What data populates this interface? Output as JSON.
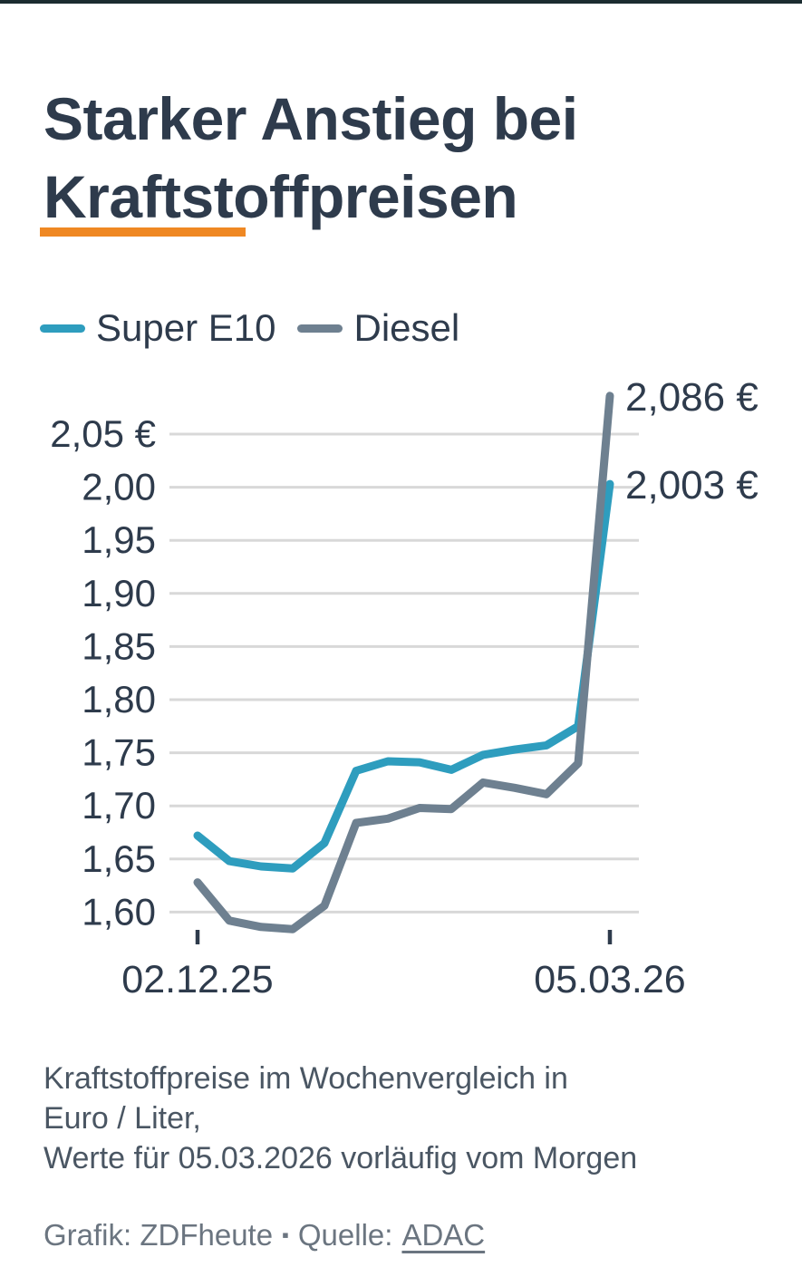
{
  "page": {
    "title_line1": "Starker Anstieg bei",
    "title_line2": "Kraftstoffpreisen"
  },
  "legend": {
    "items": [
      {
        "label": "Super E10",
        "color": "#2E9DBE"
      },
      {
        "label": "Diesel",
        "color": "#6E8090"
      }
    ]
  },
  "footer": {
    "description_line1": "Kraftstoffpreise im Wochenvergleich in",
    "description_line2": "Euro / Liter,",
    "description_line3": "Werte für 05.03.2026 vorläufig vom Morgen",
    "credit_prefix": "Grafik: ZDFheute",
    "credit_separator": "▪",
    "credit_source_label": "Quelle:",
    "credit_source": "ADAC"
  },
  "colors": {
    "accent_orange": "#EF8823",
    "super_e10": "#2E9DBE",
    "diesel": "#6E8090",
    "heading": "#2E3B4C",
    "grid": "#D8D8D8",
    "top_bar": "#1B2C30",
    "description_text": "#4A5663",
    "credit_text": "#6B7580"
  },
  "chart_data": {
    "type": "line",
    "title": "Starker Anstieg bei Kraftstoffpreisen",
    "unit": "Euro/Liter",
    "grid": true,
    "legend_position": "top-left",
    "x_point_count": 14,
    "x_tick_labels": [
      {
        "index": 0,
        "label": "02.12.25"
      },
      {
        "index": 13,
        "label": "05.03.26"
      }
    ],
    "y_ticks": [
      {
        "value": 2.05,
        "label": "2,05 €"
      },
      {
        "value": 2.0,
        "label": "2,00"
      },
      {
        "value": 1.95,
        "label": "1,95"
      },
      {
        "value": 1.9,
        "label": "1,90"
      },
      {
        "value": 1.85,
        "label": "1,85"
      },
      {
        "value": 1.8,
        "label": "1,80"
      },
      {
        "value": 1.75,
        "label": "1,75"
      },
      {
        "value": 1.7,
        "label": "1,70"
      },
      {
        "value": 1.65,
        "label": "1,65"
      },
      {
        "value": 1.6,
        "label": "1,60"
      }
    ],
    "ylim": [
      1.575,
      2.095
    ],
    "series": [
      {
        "name": "Super E10",
        "color": "#2E9DBE",
        "end_label": "2,003 €",
        "values": [
          1.672,
          1.648,
          1.643,
          1.641,
          1.665,
          1.733,
          1.742,
          1.741,
          1.734,
          1.748,
          1.753,
          1.757,
          1.775,
          2.003
        ]
      },
      {
        "name": "Diesel",
        "color": "#6E8090",
        "end_label": "2,086 €",
        "values": [
          1.628,
          1.592,
          1.586,
          1.584,
          1.606,
          1.684,
          1.688,
          1.698,
          1.697,
          1.722,
          1.717,
          1.711,
          1.74,
          2.086
        ]
      }
    ]
  }
}
